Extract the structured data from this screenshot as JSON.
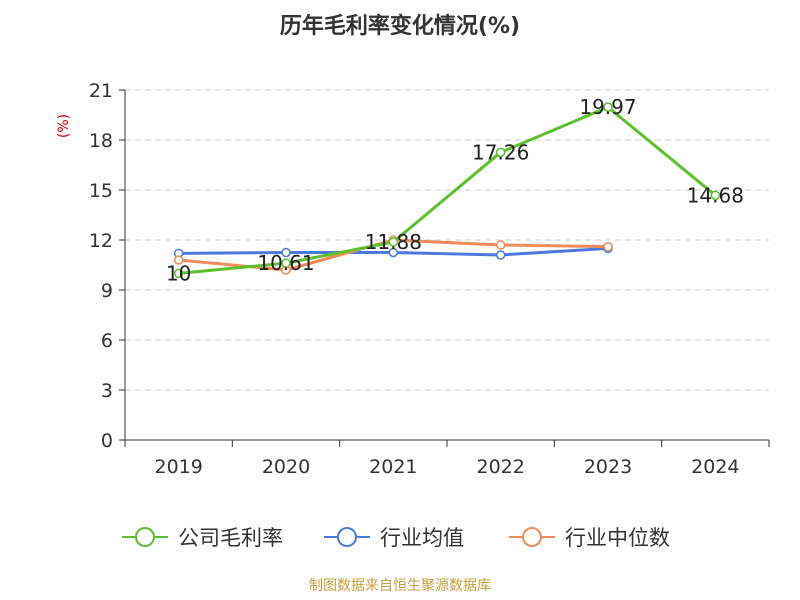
{
  "chart_data": {
    "type": "line",
    "title": "历年毛利率变化情况(%)",
    "ylabel": "(%)",
    "xlabel": "",
    "categories": [
      "2019",
      "2020",
      "2021",
      "2022",
      "2023",
      "2024"
    ],
    "ylim": [
      0,
      21
    ],
    "yticks": [
      0,
      3,
      6,
      9,
      12,
      15,
      18,
      21
    ],
    "grid": true,
    "legend_position": "bottom",
    "series": [
      {
        "name": "公司毛利率",
        "color": "#5cc22c",
        "values": [
          10,
          10.61,
          11.88,
          17.26,
          19.97,
          14.68
        ],
        "labels": [
          "10",
          "10.61",
          "11.88",
          "17.26",
          "19.97",
          "14.68"
        ]
      },
      {
        "name": "行业均值",
        "color": "#4a7bdc",
        "values": [
          11.2,
          11.25,
          11.25,
          11.1,
          11.5,
          null
        ],
        "labels": []
      },
      {
        "name": "行业中位数",
        "color": "#f08c5a",
        "values": [
          10.8,
          10.2,
          12.0,
          11.7,
          11.6,
          null
        ],
        "labels": []
      }
    ],
    "source_note": "制图数据来自恒生聚源数据库",
    "colors": {
      "axis": "#333333",
      "grid": "#cccccc",
      "ylabel": "#cc0000",
      "source": "#c8a040"
    }
  }
}
